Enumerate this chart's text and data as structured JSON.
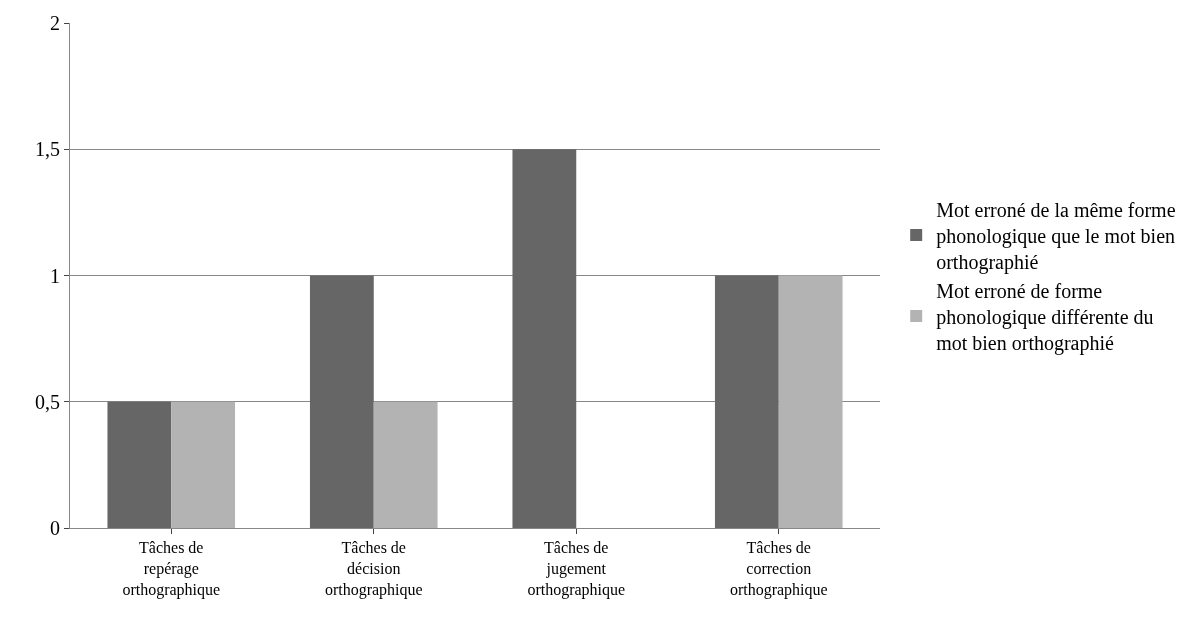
{
  "chart_data": {
    "type": "bar",
    "categories": [
      "Tâches de repérage orthographique",
      "Tâches de décision orthographique",
      "Tâches de jugement orthographique",
      "Tâches de correction orthographique"
    ],
    "series": [
      {
        "name": "Mot erroné de la même forme phonologique que le mot bien orthographié",
        "color": "#666666",
        "values": [
          0.5,
          1,
          1.5,
          1
        ]
      },
      {
        "name": "Mot erroné de forme phonologique différente du mot bien orthographié",
        "color": "#b3b3b3",
        "values": [
          0.5,
          0.5,
          0,
          1
        ]
      }
    ],
    "ylim": [
      0,
      2
    ],
    "yticks": [
      {
        "value": 0,
        "label": "0"
      },
      {
        "value": 0.5,
        "label": "0,5"
      },
      {
        "value": 1,
        "label": "1"
      },
      {
        "value": 1.5,
        "label": "1,5"
      },
      {
        "value": 2,
        "label": "2"
      }
    ],
    "grid": "y",
    "legend": "right"
  }
}
